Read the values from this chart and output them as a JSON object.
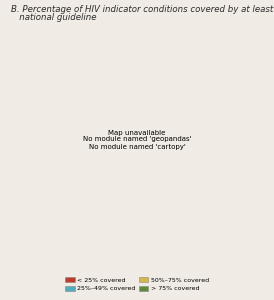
{
  "title_line1": "B. Percentage of HIV indicator conditions covered by at least one",
  "title_line2": "   national guideline",
  "title_fontsize": 6.2,
  "figure_bg": "#f0ece5",
  "ocean_color": "#cde0ea",
  "no_data_color": "#d0cdc7",
  "border_color": "#ffffff",
  "border_width": 0.4,
  "legend": [
    {
      "label": "< 25% covered",
      "color": "#c0392b"
    },
    {
      "label": "25%–49% covered",
      "color": "#4eaec0"
    },
    {
      "label": "50%–75% covered",
      "color": "#d4b84a"
    },
    {
      "label": "> 75% covered",
      "color": "#5d8a3c"
    }
  ],
  "country_colors": {
    "Iceland": "#d0cdc7",
    "Norway": "#d0cdc7",
    "Sweden": "#d0cdc7",
    "Finland": "#d0cdc7",
    "Estonia": "#4eaec0",
    "Latvia": "#d0cdc7",
    "Lithuania": "#d0cdc7",
    "Denmark": "#5d8a3c",
    "Ireland": "#888880",
    "United Kingdom": "#d4b84a",
    "Netherlands": "#d4b84a",
    "Belgium": "#4eaec0",
    "Luxembourg": "#d4b84a",
    "France": "#4eaec0",
    "Spain": "#d0cdc7",
    "Portugal": "#d0cdc7",
    "Germany": "#d4b84a",
    "Switzerland": "#d0cdc7",
    "Austria": "#d0cdc7",
    "Italy": "#4eaec0",
    "Slovenia": "#4eaec0",
    "Croatia": "#4eaec0",
    "Bosnia and Herzegovina": "#d0cdc7",
    "Serbia": "#d0cdc7",
    "Montenegro": "#d0cdc7",
    "Albania": "#d0cdc7",
    "North Macedonia": "#d0cdc7",
    "Greece": "#d4b84a",
    "Bulgaria": "#4eaec0",
    "Romania": "#4eaec0",
    "Moldova": "#d0cdc7",
    "Ukraine": "#5d8a3c",
    "Belarus": "#5d8a3c",
    "Poland": "#d4b84a",
    "Czechia": "#d4b84a",
    "Czech Republic": "#d4b84a",
    "Slovakia": "#d0cdc7",
    "Hungary": "#d4b84a",
    "Kosovo": "#d0cdc7",
    "Malta": "#4eaec0",
    "Cyprus": "#d0cdc7",
    "Russia": "#d4b84a",
    "Turkey": "#d0cdc7",
    "Georgia": "#d0cdc7",
    "Armenia": "#d0cdc7",
    "Azerbaijan": "#4eaec0",
    "Kazakhstan": "#d4b84a"
  }
}
